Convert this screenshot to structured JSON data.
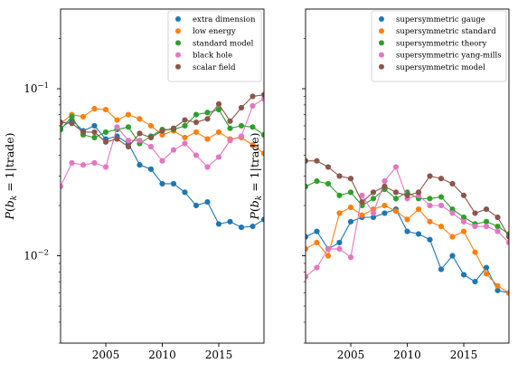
{
  "chart_data": [
    {
      "type": "line",
      "ylabel": "P(b_k = 1|trade)",
      "ylabel_parts": {
        "p": "P",
        "b": "b",
        "k": "k",
        "rest": " = 1|trade)",
        "open": "("
      },
      "yscale": "log",
      "xlim": [
        2001,
        2019
      ],
      "ylim": [
        0.003,
        0.3
      ],
      "xticks": [
        2005,
        2010,
        2015
      ],
      "yticks": [
        {
          "value": 0.1,
          "label": "10",
          "exp": "−1"
        },
        {
          "value": 0.01,
          "label": "10",
          "exp": "−2"
        }
      ],
      "legend_position": "top-right",
      "series": [
        {
          "name": "extra dimension",
          "color": "#1f77b4",
          "x": [
            2001,
            2002,
            2003,
            2004,
            2005,
            2006,
            2007,
            2008,
            2009,
            2010,
            2011,
            2012,
            2013,
            2014,
            2015,
            2016,
            2017,
            2018,
            2019
          ],
          "values": [
            0.058,
            0.065,
            0.056,
            0.06,
            0.05,
            0.052,
            0.047,
            0.035,
            0.033,
            0.027,
            0.027,
            0.024,
            0.02,
            0.021,
            0.0155,
            0.016,
            0.0148,
            0.015,
            0.0165
          ]
        },
        {
          "name": "low energy",
          "color": "#ff7f0e",
          "x": [
            2001,
            2002,
            2003,
            2004,
            2005,
            2006,
            2007,
            2008,
            2009,
            2010,
            2011,
            2012,
            2013,
            2014,
            2015,
            2016,
            2017,
            2018,
            2019
          ],
          "values": [
            0.062,
            0.07,
            0.068,
            0.076,
            0.075,
            0.065,
            0.07,
            0.066,
            0.06,
            0.053,
            0.056,
            0.051,
            0.055,
            0.05,
            0.055,
            0.05,
            0.051,
            0.046,
            0.041
          ]
        },
        {
          "name": "standard model",
          "color": "#2ca02c",
          "x": [
            2001,
            2002,
            2003,
            2004,
            2005,
            2006,
            2007,
            2008,
            2009,
            2010,
            2011,
            2012,
            2013,
            2014,
            2015,
            2016,
            2017,
            2018,
            2019
          ],
          "values": [
            0.057,
            0.068,
            0.053,
            0.051,
            0.055,
            0.057,
            0.059,
            0.047,
            0.052,
            0.057,
            0.057,
            0.06,
            0.07,
            0.072,
            0.075,
            0.058,
            0.06,
            0.059,
            0.053
          ]
        },
        {
          "name": "black hole",
          "color": "#e377c2",
          "x": [
            2001,
            2002,
            2003,
            2004,
            2005,
            2006,
            2007,
            2008,
            2009,
            2010,
            2011,
            2012,
            2013,
            2014,
            2015,
            2016,
            2017,
            2018,
            2019
          ],
          "values": [
            0.026,
            0.036,
            0.035,
            0.036,
            0.034,
            0.059,
            0.049,
            0.049,
            0.045,
            0.037,
            0.043,
            0.047,
            0.04,
            0.034,
            0.039,
            0.049,
            0.052,
            0.079,
            0.087
          ]
        },
        {
          "name": "scalar field",
          "color": "#8c564b",
          "x": [
            2001,
            2002,
            2003,
            2004,
            2005,
            2006,
            2007,
            2008,
            2009,
            2010,
            2011,
            2012,
            2013,
            2014,
            2015,
            2016,
            2017,
            2018,
            2019
          ],
          "values": [
            0.063,
            0.062,
            0.055,
            0.055,
            0.048,
            0.05,
            0.045,
            0.054,
            0.051,
            0.056,
            0.058,
            0.065,
            0.063,
            0.066,
            0.081,
            0.064,
            0.077,
            0.09,
            0.092
          ]
        }
      ]
    },
    {
      "type": "line",
      "ylabel": "P(b_k = 1|trade)",
      "ylabel_parts": {
        "p": "P",
        "b": "b",
        "k": "k",
        "rest": " = 1|trade)",
        "open": "("
      },
      "yscale": "log",
      "xlim": [
        2001,
        2019
      ],
      "ylim": [
        0.003,
        0.3
      ],
      "xticks": [
        2005,
        2010,
        2015
      ],
      "yticks": [
        {
          "value": 0.1,
          "label": "",
          "exp": ""
        },
        {
          "value": 0.01,
          "label": "",
          "exp": ""
        }
      ],
      "legend_position": "top-right",
      "series": [
        {
          "name": "supersymmetric gauge",
          "color": "#1f77b4",
          "x": [
            2001,
            2002,
            2003,
            2004,
            2005,
            2006,
            2007,
            2008,
            2009,
            2010,
            2011,
            2012,
            2013,
            2014,
            2015,
            2016,
            2017,
            2018,
            2019
          ],
          "values": [
            0.013,
            0.014,
            0.011,
            0.012,
            0.016,
            0.017,
            0.017,
            0.018,
            0.019,
            0.014,
            0.0135,
            0.0125,
            0.0083,
            0.01,
            0.0077,
            0.007,
            0.0085,
            0.0062,
            0.006
          ]
        },
        {
          "name": "supersymmetric standard",
          "color": "#ff7f0e",
          "x": [
            2001,
            2002,
            2003,
            2004,
            2005,
            2006,
            2007,
            2008,
            2009,
            2010,
            2011,
            2012,
            2013,
            2014,
            2015,
            2016,
            2017,
            2018,
            2019
          ],
          "values": [
            0.011,
            0.012,
            0.01,
            0.018,
            0.0195,
            0.0175,
            0.019,
            0.02,
            0.0185,
            0.0165,
            0.019,
            0.016,
            0.015,
            0.013,
            0.014,
            0.0105,
            0.0078,
            0.0066,
            0.006
          ]
        },
        {
          "name": "supersymmetric theory",
          "color": "#2ca02c",
          "x": [
            2001,
            2002,
            2003,
            2004,
            2005,
            2006,
            2007,
            2008,
            2009,
            2010,
            2011,
            2012,
            2013,
            2014,
            2015,
            2016,
            2017,
            2018,
            2019
          ],
          "values": [
            0.026,
            0.028,
            0.027,
            0.023,
            0.024,
            0.02,
            0.022,
            0.025,
            0.022,
            0.024,
            0.022,
            0.022,
            0.0225,
            0.019,
            0.017,
            0.0155,
            0.016,
            0.015,
            0.0135
          ]
        },
        {
          "name": "supersymmetric yang-mills",
          "color": "#e377c2",
          "x": [
            2001,
            2002,
            2003,
            2004,
            2005,
            2006,
            2007,
            2008,
            2009,
            2010,
            2011,
            2012,
            2013,
            2014,
            2015,
            2016,
            2017,
            2018,
            2019
          ],
          "values": [
            0.0075,
            0.0085,
            0.011,
            0.011,
            0.0098,
            0.023,
            0.018,
            0.028,
            0.034,
            0.022,
            0.023,
            0.02,
            0.02,
            0.018,
            0.016,
            0.015,
            0.015,
            0.014,
            0.012
          ]
        },
        {
          "name": "supersymmetric model",
          "color": "#8c564b",
          "x": [
            2001,
            2002,
            2003,
            2004,
            2005,
            2006,
            2007,
            2008,
            2009,
            2010,
            2011,
            2012,
            2013,
            2014,
            2015,
            2016,
            2017,
            2018,
            2019
          ],
          "values": [
            0.037,
            0.037,
            0.034,
            0.03,
            0.029,
            0.021,
            0.024,
            0.026,
            0.024,
            0.023,
            0.024,
            0.03,
            0.029,
            0.027,
            0.023,
            0.018,
            0.019,
            0.017,
            0.013
          ]
        }
      ]
    }
  ]
}
